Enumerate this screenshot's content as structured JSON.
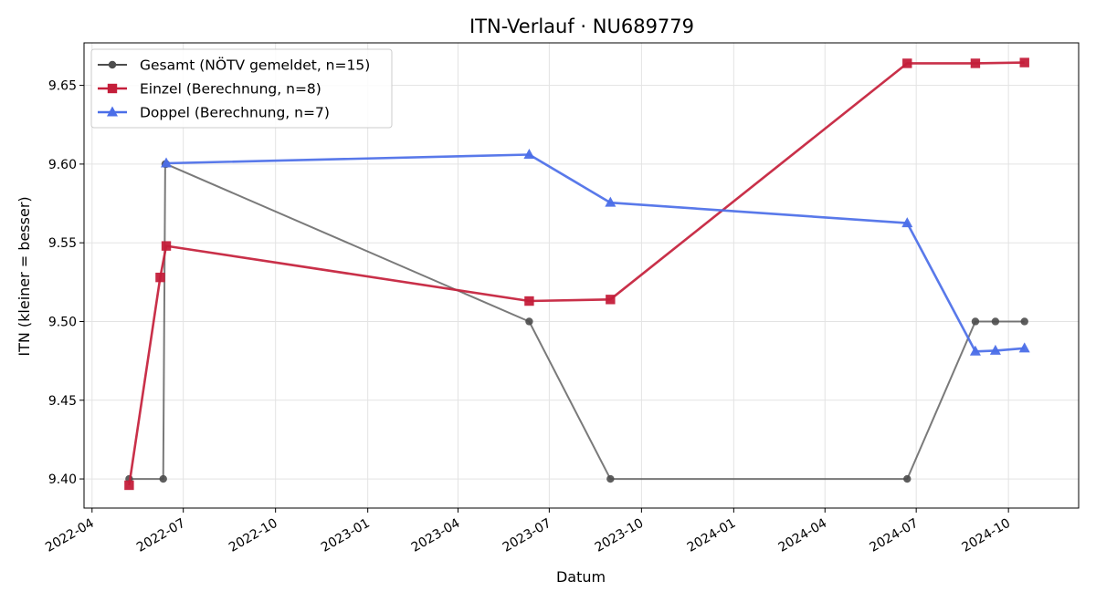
{
  "chart_data": {
    "type": "line",
    "title": "ITN-Verlauf · NU689779",
    "xlabel": "Datum",
    "ylabel": "ITN  (kleiner = besser)",
    "x_type": "date",
    "xlim": [
      "2022-03-24",
      "2024-12-10"
    ],
    "ylim": [
      9.3815,
      9.677
    ],
    "x_ticks": [
      "2022-04-01",
      "2022-07-01",
      "2022-10-01",
      "2023-01-01",
      "2023-04-01",
      "2023-07-01",
      "2023-10-01",
      "2024-01-01",
      "2024-04-01",
      "2024-07-01",
      "2024-10-01"
    ],
    "x_tick_labels": [
      "2022-04",
      "2022-07",
      "2022-10",
      "2023-01",
      "2023-04",
      "2023-07",
      "2023-10",
      "2024-01",
      "2024-04",
      "2024-07",
      "2024-10"
    ],
    "y_ticks": [
      9.4,
      9.45,
      9.5,
      9.55,
      9.6,
      9.65
    ],
    "y_tick_labels": [
      "9.40",
      "9.45",
      "9.50",
      "9.55",
      "9.60",
      "9.65"
    ],
    "grid": true,
    "legend_position": "top-left",
    "series": [
      {
        "name": "Gesamt (NÖTV gemeldet, n=15)",
        "color": "#4d4d4d",
        "marker": "circle",
        "points": [
          {
            "x": "2022-05-08",
            "y": 9.4
          },
          {
            "x": "2022-06-11",
            "y": 9.4
          },
          {
            "x": "2022-06-13",
            "y": 9.6
          },
          {
            "x": "2022-06-14",
            "y": 9.6
          },
          {
            "x": "2023-06-11",
            "y": 9.5
          },
          {
            "x": "2023-08-31",
            "y": 9.4
          },
          {
            "x": "2024-06-22",
            "y": 9.4
          },
          {
            "x": "2024-08-29",
            "y": 9.5
          },
          {
            "x": "2024-09-18",
            "y": 9.5
          },
          {
            "x": "2024-10-17",
            "y": 9.5
          }
        ]
      },
      {
        "name": "Einzel (Berechnung, n=8)",
        "color": "#c41e3a",
        "marker": "square",
        "points": [
          {
            "x": "2022-05-08",
            "y": 9.396
          },
          {
            "x": "2022-06-08",
            "y": 9.528
          },
          {
            "x": "2022-06-14",
            "y": 9.548
          },
          {
            "x": "2023-06-11",
            "y": 9.513
          },
          {
            "x": "2023-08-31",
            "y": 9.514
          },
          {
            "x": "2024-06-22",
            "y": 9.664
          },
          {
            "x": "2024-08-29",
            "y": 9.664
          },
          {
            "x": "2024-10-17",
            "y": 9.6645
          }
        ]
      },
      {
        "name": "Doppel (Berechnung, n=7)",
        "color": "#4b6ee8",
        "marker": "triangle",
        "points": [
          {
            "x": "2022-06-14",
            "y": 9.6005
          },
          {
            "x": "2023-06-11",
            "y": 9.606
          },
          {
            "x": "2023-08-31",
            "y": 9.5755
          },
          {
            "x": "2024-06-22",
            "y": 9.5625
          },
          {
            "x": "2024-08-29",
            "y": 9.481
          },
          {
            "x": "2024-09-18",
            "y": 9.4815
          },
          {
            "x": "2024-10-17",
            "y": 9.483
          }
        ]
      }
    ]
  }
}
